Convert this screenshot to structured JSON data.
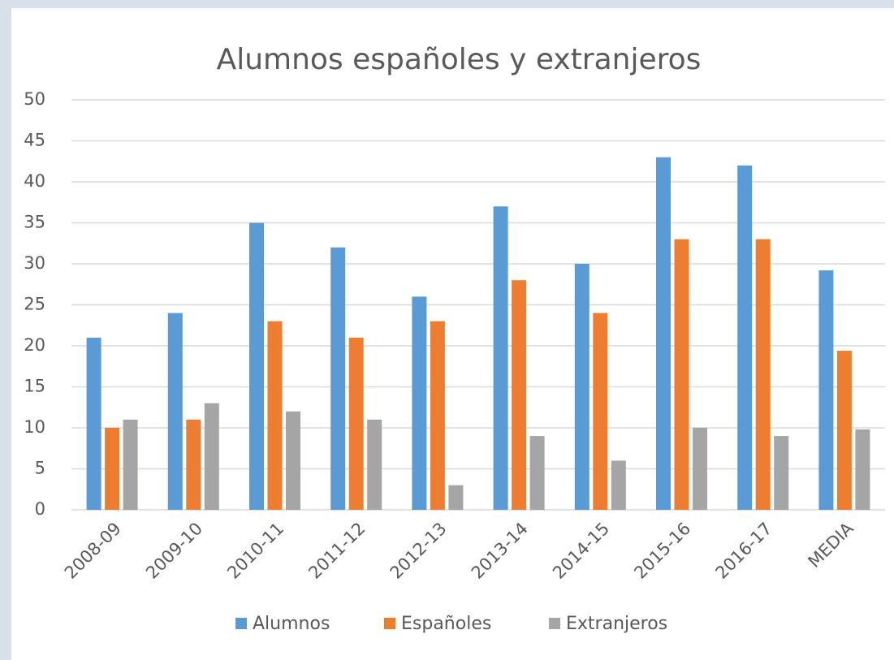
{
  "chart_data": {
    "type": "bar",
    "title": "Alumnos españoles y extranjeros",
    "categories": [
      "2008-09",
      "2009-10",
      "2010-11",
      "2011-12",
      "2012-13",
      "2013-14",
      "2014-15",
      "2015-16",
      "2016-17",
      "MEDIA"
    ],
    "series": [
      {
        "name": "Alumnos",
        "color": "#5b9bd5",
        "values": [
          21,
          24,
          35,
          32,
          26,
          37,
          30,
          43,
          42,
          29.2
        ]
      },
      {
        "name": "Españoles",
        "color": "#ed7d31",
        "values": [
          10,
          11,
          23,
          21,
          23,
          28,
          24,
          33,
          33,
          19.4
        ]
      },
      {
        "name": "Extranjeros",
        "color": "#a5a5a5",
        "values": [
          11,
          13,
          12,
          11,
          3,
          9,
          6,
          10,
          9,
          9.8
        ]
      }
    ],
    "ylim": [
      0,
      50
    ],
    "yticks": [
      0,
      5,
      10,
      15,
      20,
      25,
      30,
      35,
      40,
      45,
      50
    ],
    "grid": true,
    "legend": "bottom"
  }
}
